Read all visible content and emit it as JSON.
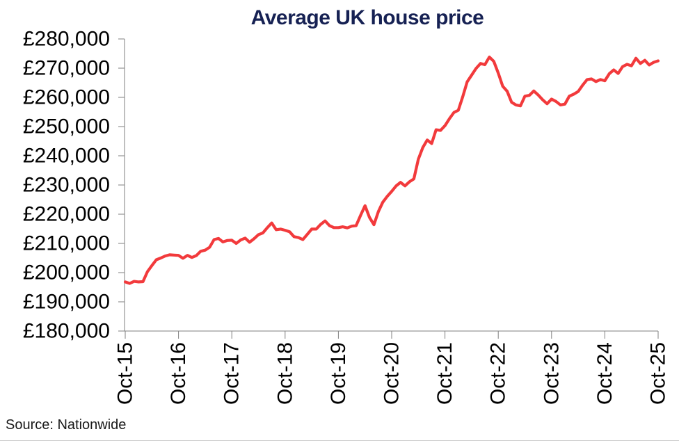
{
  "page": {
    "source_label": "Source: Nationwide"
  },
  "colors": {
    "line": "#f23a3c",
    "title": "#162153",
    "axis": "#7f7f7f",
    "tick_text": "#000000",
    "bottom_rule": "#cfcfcf"
  },
  "chart_data": {
    "type": "line",
    "title": "Average UK house price",
    "xlabel": "",
    "ylabel": "",
    "grid": false,
    "legend": "none",
    "ylim": [
      180000,
      280000
    ],
    "y_tick_values": [
      280000,
      270000,
      260000,
      250000,
      240000,
      230000,
      220000,
      210000,
      200000,
      190000,
      180000
    ],
    "y_tick_labels": [
      "£280,000",
      "£270,000",
      "£260,000",
      "£250,000",
      "£240,000",
      "£230,000",
      "£220,000",
      "£210,000",
      "£200,000",
      "£190,000",
      "£180,000"
    ],
    "x_tick_labels": [
      "Oct-15",
      "Oct-16",
      "Oct-17",
      "Oct-18",
      "Oct-19",
      "Oct-20",
      "Oct-21",
      "Oct-22",
      "Oct-23",
      "Oct-24",
      "Oct-25"
    ],
    "series": [
      {
        "name": "Average UK house price (GBP)",
        "frequency": "monthly",
        "start": "Oct-15",
        "end": "Oct-25",
        "values": [
          196800,
          196300,
          197000,
          196800,
          196900,
          200300,
          202400,
          204400,
          205000,
          205700,
          206100,
          206000,
          205900,
          204900,
          205900,
          205200,
          205800,
          207300,
          207700,
          208700,
          211300,
          211700,
          210500,
          211000,
          211100,
          210000,
          211200,
          211800,
          210400,
          211600,
          213000,
          213600,
          215400,
          217000,
          214700,
          214900,
          214500,
          214000,
          212300,
          212000,
          211300,
          213100,
          214900,
          214900,
          216500,
          217700,
          216100,
          215400,
          215400,
          215700,
          215300,
          215900,
          216100,
          219600,
          222900,
          218900,
          216400,
          220900,
          224100,
          226100,
          227800,
          229700,
          230900,
          229700,
          231100,
          232100,
          238800,
          242800,
          245400,
          244200,
          248900,
          248700,
          250300,
          252700,
          254800,
          255600,
          260200,
          265300,
          267600,
          269900,
          271600,
          271200,
          273800,
          272300,
          268300,
          263800,
          262100,
          258300,
          257400,
          257100,
          260400,
          260700,
          262200,
          260800,
          259200,
          257800,
          259400,
          258600,
          257400,
          257700,
          260400,
          261100,
          262000,
          264200,
          266100,
          266300,
          265400,
          266100,
          265700,
          268100,
          269400,
          268200,
          270500,
          271300,
          270800,
          273400,
          271600,
          272700,
          271100,
          272000,
          272500
        ]
      }
    ]
  }
}
